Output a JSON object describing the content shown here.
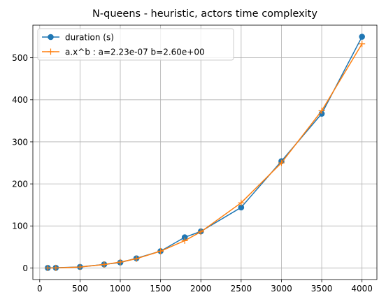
{
  "chart_data": {
    "type": "line",
    "title": "N-queens - heuristic, actors time complexity",
    "xlabel": "",
    "ylabel": "",
    "xlim": [
      -85,
      4185
    ],
    "ylim": [
      -27.5,
      577.5
    ],
    "xticks": [
      0,
      500,
      1000,
      1500,
      2000,
      2500,
      3000,
      3500,
      4000
    ],
    "yticks": [
      0,
      100,
      200,
      300,
      400,
      500
    ],
    "grid": true,
    "legend_position": "top-left",
    "series": [
      {
        "name": "duration (s)",
        "color": "#1f77b4",
        "marker": "circle",
        "x": [
          100,
          200,
          500,
          800,
          1000,
          1200,
          1500,
          1800,
          2000,
          2500,
          3000,
          3500,
          4000
        ],
        "y": [
          0.3,
          0.5,
          2.5,
          8.5,
          13,
          23,
          40,
          73,
          87,
          144,
          254,
          367,
          550
        ]
      },
      {
        "name": "a.x^b : a=2.23e-07 b=2.60e+00",
        "color": "#ff7f0e",
        "marker": "plus",
        "x": [
          100,
          200,
          500,
          800,
          1000,
          1200,
          1500,
          1800,
          2000,
          2500,
          3000,
          3500,
          4000
        ],
        "y": [
          0.03,
          0.2,
          2.3,
          8.2,
          14,
          22,
          40,
          65,
          86,
          155,
          250,
          374,
          533
        ]
      }
    ]
  }
}
